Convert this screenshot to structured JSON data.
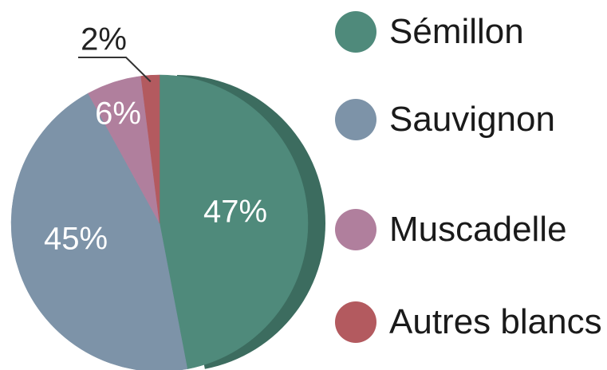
{
  "chart_data": {
    "type": "pie",
    "categories": [
      "Sémillon",
      "Sauvignon",
      "Muscadelle",
      "Autres blancs"
    ],
    "values": [
      47,
      45,
      6,
      2
    ],
    "value_labels": [
      "47%",
      "45%",
      "6%",
      "2%"
    ],
    "colors": [
      "#4f8a7b",
      "#7d93a8",
      "#b07f9d",
      "#b35a5f"
    ]
  }
}
